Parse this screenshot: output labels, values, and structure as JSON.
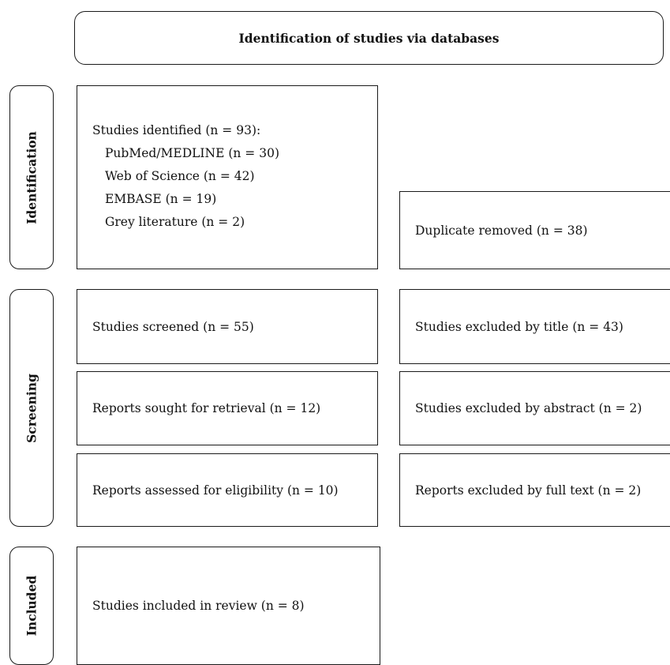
{
  "header": {
    "title": "Identification of studies via databases"
  },
  "phases": {
    "identification": "Identification",
    "screening": "Screening",
    "included": "Included"
  },
  "identification": {
    "studies_identified": {
      "title": "Studies identified (n = 93):",
      "items": [
        "PubMed/MEDLINE (n = 30)",
        "Web of Science (n = 42)",
        "EMBASE (n = 19)",
        "Grey literature (n = 2)"
      ]
    },
    "duplicates_removed": "Duplicate removed (n = 38)"
  },
  "screening": {
    "studies_screened": "Studies screened (n = 55)",
    "excluded_by_title": "Studies excluded by title (n = 43)",
    "reports_sought": "Reports sought for retrieval (n = 12)",
    "excluded_by_abstract": "Studies excluded by abstract (n = 2)",
    "reports_assessed": "Reports assessed for eligibility (n = 10)",
    "excluded_by_full_text": "Reports excluded by full text (n = 2)"
  },
  "included": {
    "studies_included": "Studies included in review (n = 8)"
  }
}
